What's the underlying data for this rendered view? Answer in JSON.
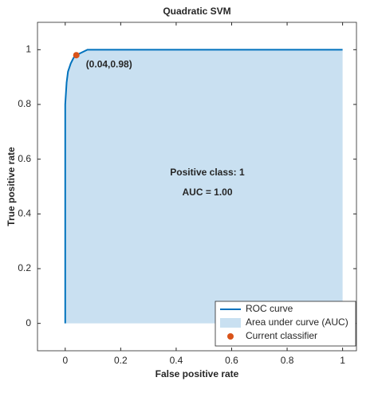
{
  "chart_data": {
    "type": "line",
    "title": "Quadratic SVM",
    "xlabel": "False positive rate",
    "ylabel": "True positive rate",
    "xlim": [
      -0.1,
      1.05
    ],
    "ylim": [
      -0.1,
      1.1
    ],
    "xticks": [
      0,
      0.2,
      0.4,
      0.6,
      0.8,
      1
    ],
    "yticks": [
      0,
      0.2,
      0.4,
      0.6,
      0.8,
      1
    ],
    "annotations": [
      "Positive class: 1",
      "AUC = 1.00"
    ],
    "legend": "lower right",
    "series": [
      {
        "name": "ROC curve",
        "color": "#0072bd",
        "x": [
          0,
          0,
          0.005,
          0.01,
          0.02,
          0.03,
          0.04,
          0.06,
          0.08,
          1
        ],
        "values": [
          0,
          0.8,
          0.88,
          0.92,
          0.95,
          0.97,
          0.98,
          0.99,
          1,
          1
        ]
      },
      {
        "name": "Area under curve (AUC)",
        "color": "#c9e0f1"
      },
      {
        "name": "Current classifier",
        "color": "#d95319",
        "x": [
          0.04
        ],
        "values": [
          0.98
        ],
        "value_labels": [
          "(0.04,0.98)"
        ]
      }
    ]
  }
}
